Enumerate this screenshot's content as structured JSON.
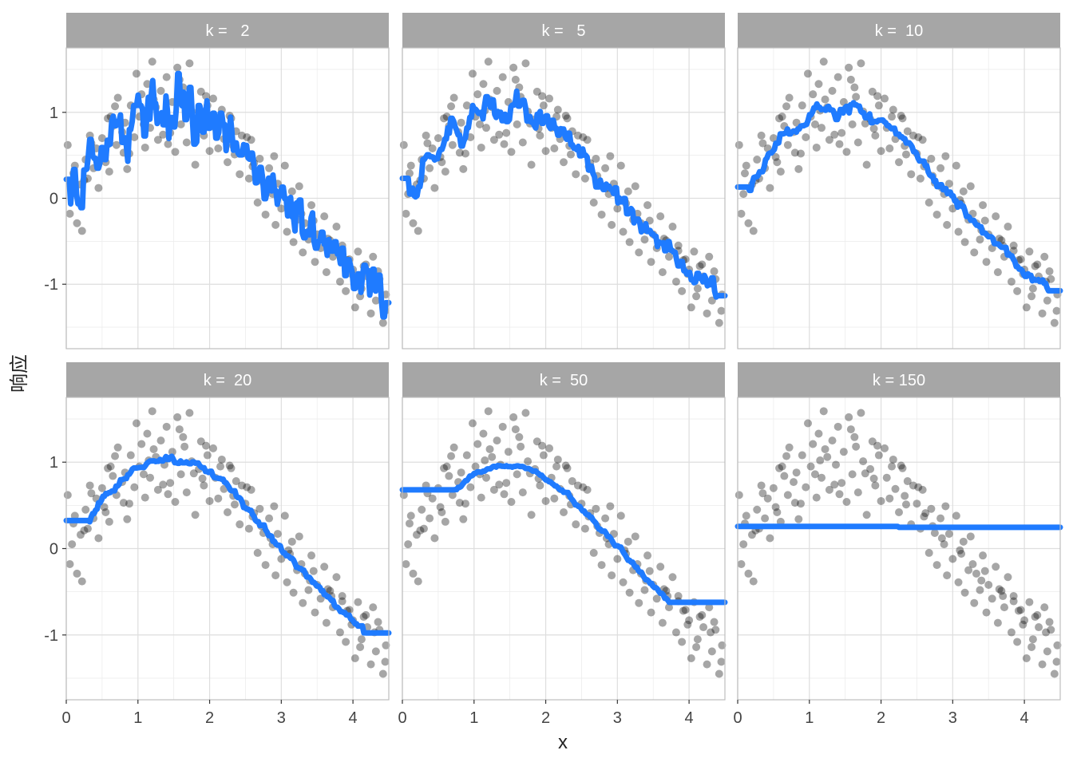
{
  "chart_data": {
    "type": "scatter",
    "layout": "facet-grid-2x3",
    "xlabel": "x",
    "ylabel": "响应",
    "xlim": [
      0,
      4.5
    ],
    "ylim": [
      -1.75,
      1.75
    ],
    "x_ticks": [
      0,
      1,
      2,
      3,
      4
    ],
    "y_ticks": [
      -1,
      0,
      1
    ],
    "grid": true,
    "colors": {
      "points": "#000000",
      "point_opacity": 0.35,
      "fit_line": "#1f7bff",
      "strip_bg": "#a6a6a6",
      "strip_text": "#ffffff",
      "grid": "#dedede",
      "panel_border": "#bdbdbd"
    },
    "points": {
      "x": [
        0.02,
        0.05,
        0.08,
        0.12,
        0.15,
        0.2,
        0.22,
        0.27,
        0.3,
        0.33,
        0.38,
        0.42,
        0.45,
        0.5,
        0.53,
        0.58,
        0.6,
        0.65,
        0.7,
        0.72,
        0.78,
        0.82,
        0.85,
        0.9,
        0.95,
        0.98,
        1.02,
        1.05,
        1.1,
        1.13,
        1.17,
        1.2,
        1.25,
        1.28,
        1.32,
        1.37,
        1.4,
        1.45,
        1.48,
        1.52,
        1.55,
        1.6,
        1.63,
        1.68,
        1.72,
        1.75,
        1.8,
        1.85,
        1.88,
        1.92,
        1.97,
        2.0,
        2.05,
        2.08,
        2.12,
        2.17,
        2.2,
        2.25,
        2.28,
        2.33,
        2.37,
        2.42,
        2.45,
        2.5,
        2.55,
        2.58,
        2.62,
        2.67,
        2.7,
        2.75,
        2.78,
        2.83,
        2.88,
        2.92,
        2.95,
        3.0,
        3.05,
        3.08,
        3.12,
        3.17,
        3.22,
        3.25,
        3.3,
        3.33,
        3.38,
        3.42,
        3.47,
        3.5,
        3.55,
        3.6,
        3.63,
        3.68,
        3.72,
        3.77,
        3.82,
        3.85,
        3.9,
        3.95,
        3.98,
        4.03,
        4.07,
        4.12,
        4.15,
        4.2,
        4.25,
        4.28,
        4.32,
        4.37,
        4.42,
        4.46,
        0.1,
        0.35,
        0.55,
        0.68,
        0.88,
        1.08,
        1.22,
        1.42,
        1.58,
        1.78,
        1.95,
        2.15,
        2.35,
        2.52,
        2.72,
        2.9,
        3.1,
        3.28,
        3.45,
        3.65,
        3.85,
        4.0,
        4.18,
        4.35,
        4.45,
        0.25,
        0.62,
        0.8,
        1.15,
        1.35,
        1.65,
        1.9,
        2.3,
        2.6,
        2.85,
        3.15,
        3.4,
        3.7,
        3.92,
        4.1,
        4.3
      ],
      "y": [
        0.62,
        -0.18,
        0.05,
        0.38,
        -0.29,
        0.16,
        -0.38,
        0.45,
        0.23,
        0.73,
        0.35,
        0.58,
        0.12,
        0.7,
        0.48,
        0.93,
        0.31,
        0.84,
        0.62,
        1.17,
        0.77,
        0.88,
        0.34,
        1.08,
        0.71,
        1.45,
        0.95,
        1.21,
        0.59,
        1.33,
        0.82,
        1.59,
        1.06,
        0.68,
        1.25,
        0.97,
        1.41,
        0.76,
        1.12,
        0.54,
        1.52,
        0.86,
        1.29,
        0.65,
        1.57,
        1.01,
        0.39,
        0.92,
        1.24,
        0.73,
        1.08,
        0.55,
        1.16,
        0.82,
        0.58,
        1.03,
        0.69,
        0.42,
        0.96,
        0.61,
        0.78,
        0.28,
        0.73,
        0.52,
        0.23,
        0.68,
        0.41,
        -0.05,
        0.46,
        0.18,
        -0.19,
        0.35,
        0.05,
        -0.31,
        0.17,
        -0.12,
        0.38,
        -0.39,
        -0.06,
        -0.51,
        -0.25,
        0.14,
        -0.63,
        -0.29,
        -0.48,
        -0.08,
        -0.74,
        -0.42,
        -0.58,
        -0.21,
        -0.86,
        -0.49,
        -0.68,
        -0.33,
        -0.97,
        -0.55,
        -1.08,
        -0.71,
        -0.88,
        -1.27,
        -0.62,
        -1.05,
        -0.79,
        -0.91,
        -1.34,
        -0.68,
        -1.19,
        -0.94,
        -1.45,
        -1.12,
        0.29,
        0.64,
        0.42,
        1.07,
        0.52,
        0.86,
        1.15,
        0.63,
        1.38,
        0.87,
        1.19,
        0.95,
        0.51,
        0.71,
        0.26,
        0.49,
        -0.02,
        -0.18,
        -0.26,
        -0.47,
        -0.61,
        -0.83,
        -0.77,
        -0.85,
        -1.31,
        0.21,
        0.95,
        0.53,
        1.02,
        0.74,
        1.18,
        0.81,
        0.93,
        0.37,
        0.12,
        0.08,
        -0.37,
        -0.55,
        -0.72,
        -1.14,
        -0.97
      ]
    },
    "panels": [
      {
        "label": "k =   2",
        "k": 2
      },
      {
        "label": "k =   5",
        "k": 5
      },
      {
        "label": "k =  10",
        "k": 10
      },
      {
        "label": "k =  20",
        "k": 20
      },
      {
        "label": "k =  50",
        "k": 50
      },
      {
        "label": "k = 150",
        "k": 150
      }
    ]
  }
}
